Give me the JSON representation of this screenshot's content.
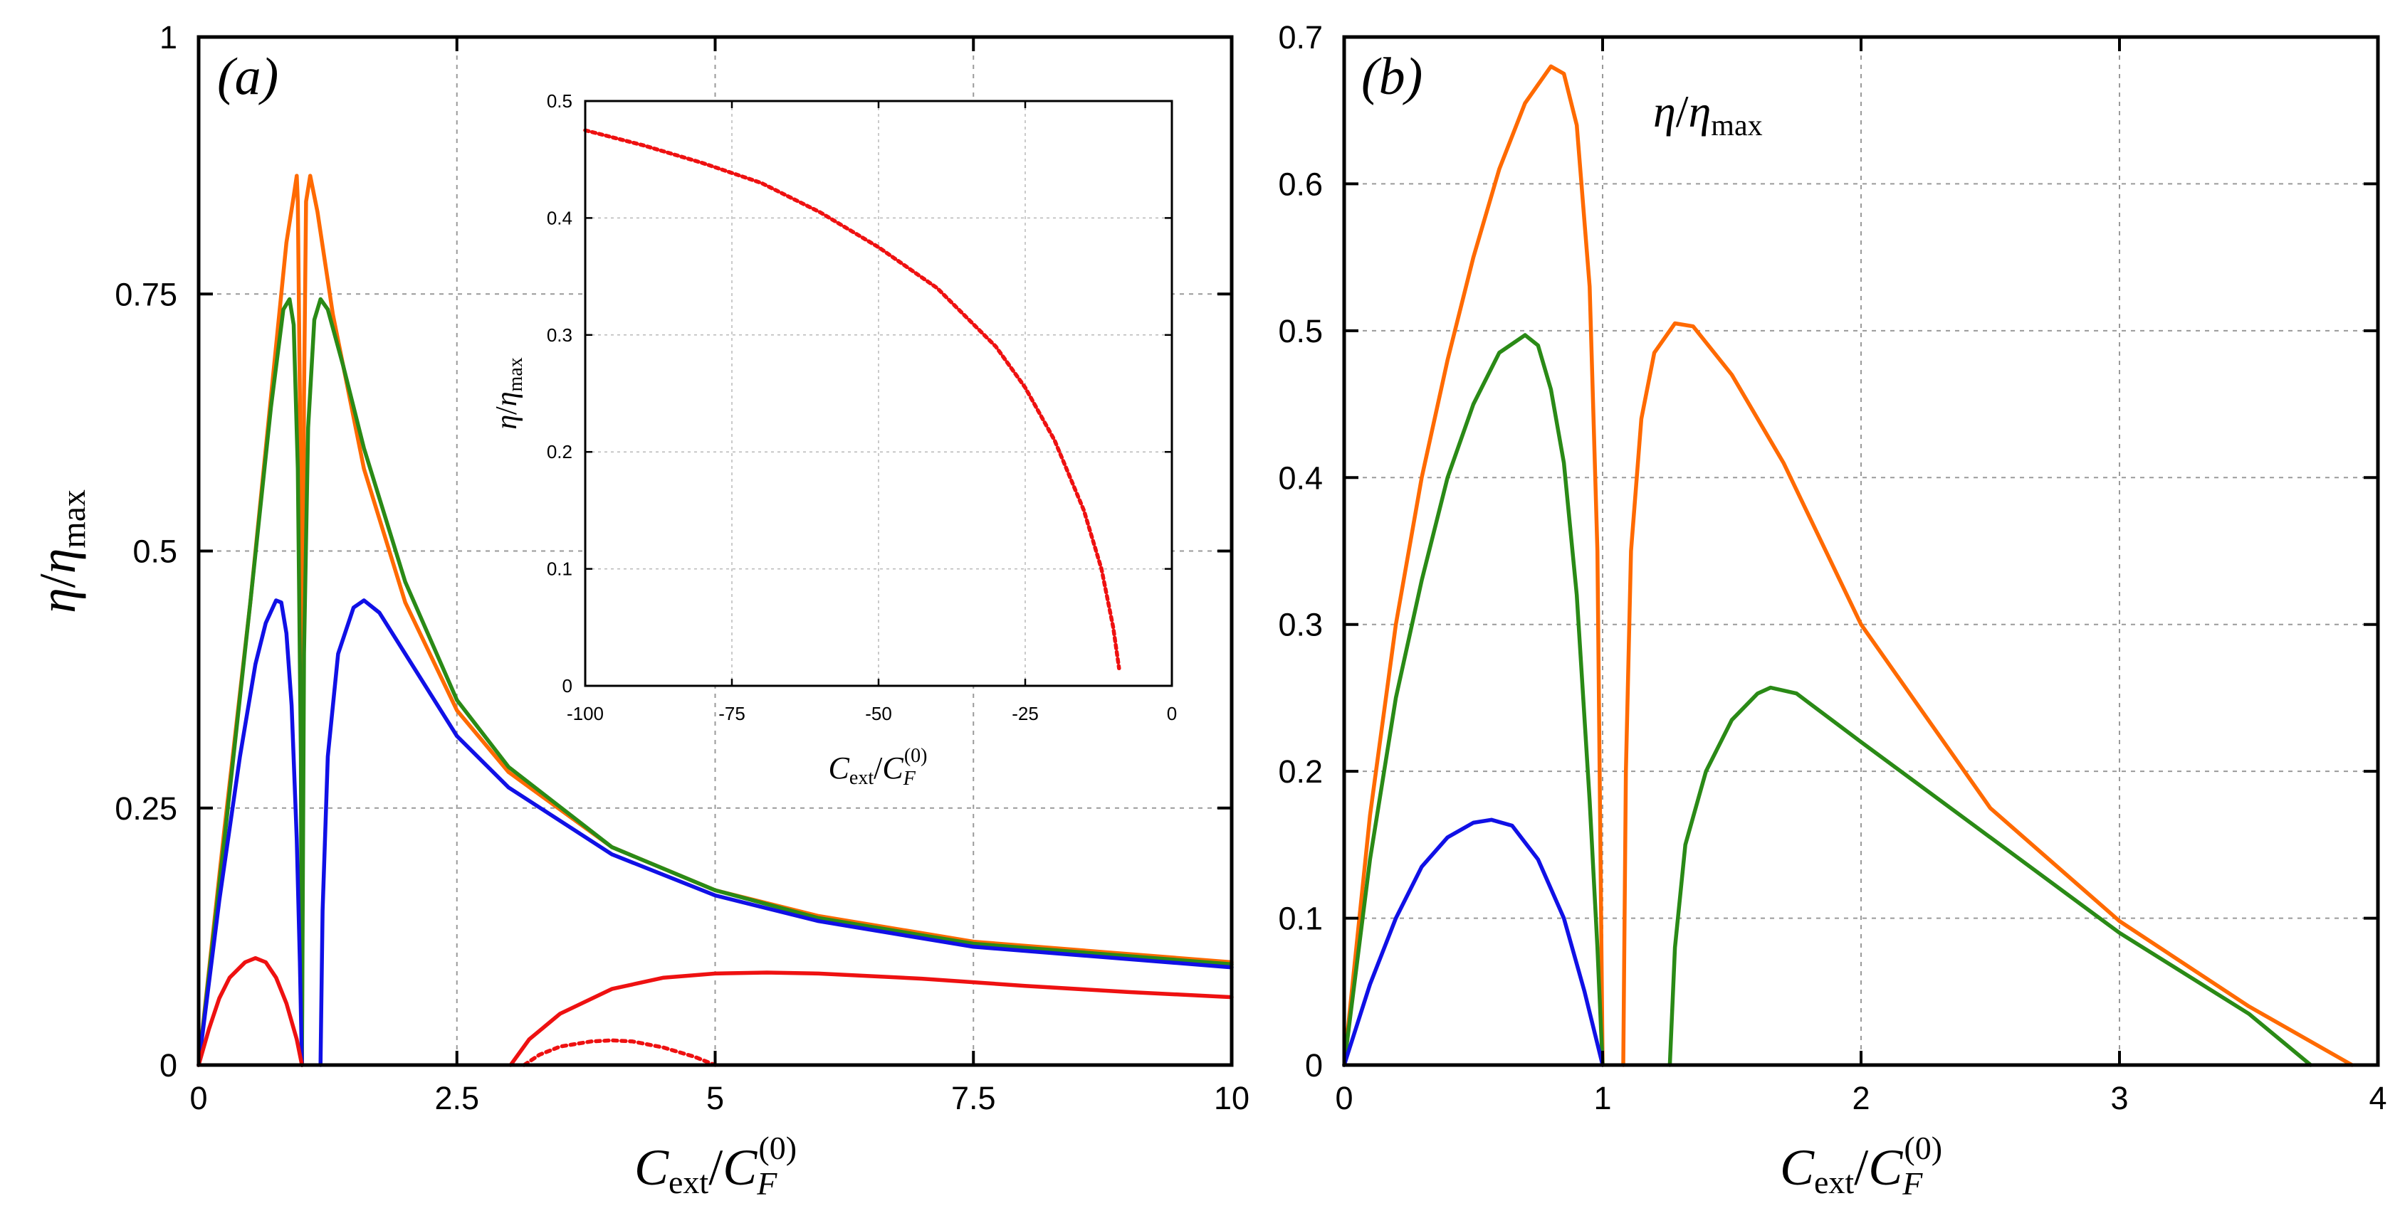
{
  "chart_data": [
    {
      "id": "a",
      "type": "line",
      "panel_label": "(a)",
      "xlabel": "C_ext/C_F^(0)",
      "ylabel": "η/η_max",
      "xlim": [
        0,
        10
      ],
      "ylim": [
        0,
        1
      ],
      "xticks": [
        0,
        2.5,
        5,
        7.5,
        10
      ],
      "xtick_labels": [
        "0",
        "2.5",
        "5",
        "7.5",
        "10"
      ],
      "yticks": [
        0,
        0.25,
        0.5,
        0.75,
        1
      ],
      "ytick_labels": [
        "0",
        "0.25",
        "0.5",
        "0.75",
        "1"
      ],
      "grid": true,
      "series": [
        {
          "name": "orange",
          "color": "#ff6a00",
          "style": "solid",
          "segments": [
            [
              [
                0,
                0
              ],
              [
                0.25,
                0.23
              ],
              [
                0.5,
                0.45
              ],
              [
                0.7,
                0.65
              ],
              [
                0.85,
                0.8
              ],
              [
                0.92,
                0.845
              ],
              [
                0.95,
                0.865
              ],
              [
                0.96,
                0.84
              ],
              [
                0.98,
                0.65
              ],
              [
                0.99,
                0.4
              ],
              [
                1.0,
                0
              ]
            ],
            [
              [
                1.0,
                0
              ],
              [
                1.01,
                0.4
              ],
              [
                1.02,
                0.65
              ],
              [
                1.04,
                0.84
              ],
              [
                1.08,
                0.865
              ],
              [
                1.15,
                0.83
              ],
              [
                1.3,
                0.73
              ],
              [
                1.6,
                0.58
              ],
              [
                2.0,
                0.45
              ],
              [
                2.5,
                0.345
              ],
              [
                3.0,
                0.285
              ],
              [
                4.0,
                0.212
              ],
              [
                5.0,
                0.17
              ],
              [
                6.0,
                0.145
              ],
              [
                7.5,
                0.12
              ],
              [
                10.0,
                0.1
              ]
            ]
          ]
        },
        {
          "name": "green",
          "color": "#2a8a16",
          "style": "solid",
          "segments": [
            [
              [
                0,
                0
              ],
              [
                0.25,
                0.22
              ],
              [
                0.5,
                0.45
              ],
              [
                0.7,
                0.64
              ],
              [
                0.82,
                0.735
              ],
              [
                0.88,
                0.745
              ],
              [
                0.92,
                0.72
              ],
              [
                0.96,
                0.58
              ],
              [
                0.99,
                0.3
              ],
              [
                1.0,
                0
              ]
            ],
            [
              [
                1.0,
                0
              ],
              [
                1.02,
                0.4
              ],
              [
                1.06,
                0.62
              ],
              [
                1.12,
                0.725
              ],
              [
                1.18,
                0.745
              ],
              [
                1.25,
                0.735
              ],
              [
                1.4,
                0.68
              ],
              [
                1.6,
                0.6
              ],
              [
                2.0,
                0.47
              ],
              [
                2.5,
                0.355
              ],
              [
                3.0,
                0.29
              ],
              [
                4.0,
                0.212
              ],
              [
                5.0,
                0.17
              ],
              [
                6.0,
                0.143
              ],
              [
                7.5,
                0.118
              ],
              [
                10.0,
                0.098
              ]
            ]
          ]
        },
        {
          "name": "blue",
          "color": "#1010e6",
          "style": "solid",
          "segments": [
            [
              [
                0,
                0
              ],
              [
                0.2,
                0.16
              ],
              [
                0.4,
                0.3
              ],
              [
                0.55,
                0.39
              ],
              [
                0.65,
                0.43
              ],
              [
                0.75,
                0.452
              ],
              [
                0.8,
                0.45
              ],
              [
                0.85,
                0.42
              ],
              [
                0.9,
                0.35
              ],
              [
                0.95,
                0.22
              ],
              [
                0.98,
                0.1
              ],
              [
                1.0,
                0
              ]
            ],
            [
              [
                1.18,
                0
              ],
              [
                1.2,
                0.15
              ],
              [
                1.25,
                0.3
              ],
              [
                1.35,
                0.4
              ],
              [
                1.5,
                0.445
              ],
              [
                1.6,
                0.452
              ],
              [
                1.75,
                0.44
              ],
              [
                2.0,
                0.4
              ],
              [
                2.5,
                0.32
              ],
              [
                3.0,
                0.27
              ],
              [
                4.0,
                0.205
              ],
              [
                5.0,
                0.165
              ],
              [
                6.0,
                0.14
              ],
              [
                7.5,
                0.115
              ],
              [
                10.0,
                0.095
              ]
            ]
          ]
        },
        {
          "name": "red",
          "color": "#ee1111",
          "style": "solid",
          "segments": [
            [
              [
                0,
                0
              ],
              [
                0.1,
                0.035
              ],
              [
                0.2,
                0.065
              ],
              [
                0.3,
                0.085
              ],
              [
                0.45,
                0.1
              ],
              [
                0.55,
                0.104
              ],
              [
                0.65,
                0.1
              ],
              [
                0.75,
                0.085
              ],
              [
                0.85,
                0.06
              ],
              [
                0.95,
                0.025
              ],
              [
                1.0,
                0
              ]
            ],
            [
              [
                3.02,
                0
              ],
              [
                3.2,
                0.025
              ],
              [
                3.5,
                0.05
              ],
              [
                4.0,
                0.074
              ],
              [
                4.5,
                0.085
              ],
              [
                5.0,
                0.089
              ],
              [
                5.5,
                0.09
              ],
              [
                6.0,
                0.089
              ],
              [
                7.0,
                0.084
              ],
              [
                8.0,
                0.077
              ],
              [
                9.0,
                0.071
              ],
              [
                10.0,
                0.066
              ]
            ]
          ]
        },
        {
          "name": "red-dotted",
          "color": "#ee1111",
          "style": "dotted",
          "segments": [
            [
              [
                3.15,
                0
              ],
              [
                3.3,
                0.01
              ],
              [
                3.5,
                0.018
              ],
              [
                3.8,
                0.023
              ],
              [
                4.0,
                0.024
              ],
              [
                4.2,
                0.023
              ],
              [
                4.5,
                0.017
              ],
              [
                4.8,
                0.008
              ],
              [
                5.0,
                0
              ]
            ]
          ]
        }
      ],
      "inset": {
        "type": "line",
        "xlabel": "C_ext/C_F^(0)",
        "ylabel": "η/η_max",
        "xlim": [
          -100,
          0
        ],
        "ylim": [
          0,
          0.5
        ],
        "xticks": [
          -100,
          -75,
          -50,
          -25,
          0
        ],
        "xtick_labels": [
          "-100",
          "-75",
          "-50",
          "-25",
          "0"
        ],
        "yticks": [
          0,
          0.1,
          0.2,
          0.3,
          0.4,
          0.5
        ],
        "ytick_labels": [
          "0",
          "0.1",
          "0.2",
          "0.3",
          "0.4",
          "0.5"
        ],
        "grid": true,
        "series": [
          {
            "name": "red-dotted",
            "color": "#ee1111",
            "style": "dotted",
            "segments": [
              [
                [
                  -100,
                  0.475
                ],
                [
                  -90,
                  0.462
                ],
                [
                  -80,
                  0.447
                ],
                [
                  -70,
                  0.43
                ],
                [
                  -60,
                  0.405
                ],
                [
                  -50,
                  0.375
                ],
                [
                  -40,
                  0.34
                ],
                [
                  -30,
                  0.29
                ],
                [
                  -25,
                  0.255
                ],
                [
                  -20,
                  0.21
                ],
                [
                  -15,
                  0.15
                ],
                [
                  -12,
                  0.1
                ],
                [
                  -10,
                  0.05
                ],
                [
                  -9,
                  0.015
                ]
              ]
            ]
          }
        ]
      }
    },
    {
      "id": "b",
      "type": "line",
      "panel_label": "(b)",
      "xlabel": "C_ext/C_F^(0)",
      "ylabel": "η/η_max",
      "annotation": "η/η_max",
      "xlim": [
        0,
        4
      ],
      "ylim": [
        0,
        0.7
      ],
      "xticks": [
        0,
        1,
        2,
        3,
        4
      ],
      "xtick_labels": [
        "0",
        "1",
        "2",
        "3",
        "4"
      ],
      "yticks": [
        0,
        0.1,
        0.2,
        0.3,
        0.4,
        0.5,
        0.6,
        0.7
      ],
      "ytick_labels": [
        "0",
        "0.1",
        "0.2",
        "0.3",
        "0.4",
        "0.5",
        "0.6",
        "0.7"
      ],
      "grid": true,
      "series": [
        {
          "name": "orange",
          "color": "#ff6a00",
          "style": "solid",
          "segments": [
            [
              [
                0,
                0
              ],
              [
                0.1,
                0.17
              ],
              [
                0.2,
                0.3
              ],
              [
                0.3,
                0.4
              ],
              [
                0.4,
                0.48
              ],
              [
                0.5,
                0.55
              ],
              [
                0.6,
                0.61
              ],
              [
                0.7,
                0.655
              ],
              [
                0.8,
                0.68
              ],
              [
                0.85,
                0.675
              ],
              [
                0.9,
                0.64
              ],
              [
                0.95,
                0.53
              ],
              [
                0.98,
                0.35
              ],
              [
                1.0,
                0
              ]
            ],
            [
              [
                1.08,
                0
              ],
              [
                1.09,
                0.2
              ],
              [
                1.11,
                0.35
              ],
              [
                1.15,
                0.44
              ],
              [
                1.2,
                0.485
              ],
              [
                1.28,
                0.505
              ],
              [
                1.35,
                0.503
              ],
              [
                1.5,
                0.47
              ],
              [
                1.7,
                0.41
              ],
              [
                2.0,
                0.3
              ],
              [
                2.5,
                0.175
              ],
              [
                3.0,
                0.098
              ],
              [
                3.5,
                0.04
              ],
              [
                3.9,
                0
              ]
            ]
          ]
        },
        {
          "name": "green",
          "color": "#2a8a16",
          "style": "solid",
          "segments": [
            [
              [
                0,
                0
              ],
              [
                0.1,
                0.14
              ],
              [
                0.2,
                0.25
              ],
              [
                0.3,
                0.33
              ],
              [
                0.4,
                0.4
              ],
              [
                0.5,
                0.45
              ],
              [
                0.6,
                0.485
              ],
              [
                0.7,
                0.497
              ],
              [
                0.75,
                0.49
              ],
              [
                0.8,
                0.46
              ],
              [
                0.85,
                0.41
              ],
              [
                0.9,
                0.32
              ],
              [
                0.95,
                0.18
              ],
              [
                0.98,
                0.08
              ],
              [
                1.0,
                0
              ]
            ],
            [
              [
                1.26,
                0
              ],
              [
                1.28,
                0.08
              ],
              [
                1.32,
                0.15
              ],
              [
                1.4,
                0.2
              ],
              [
                1.5,
                0.235
              ],
              [
                1.6,
                0.253
              ],
              [
                1.65,
                0.257
              ],
              [
                1.75,
                0.253
              ],
              [
                2.0,
                0.22
              ],
              [
                2.5,
                0.155
              ],
              [
                3.0,
                0.09
              ],
              [
                3.5,
                0.035
              ],
              [
                3.74,
                0
              ]
            ]
          ]
        },
        {
          "name": "blue",
          "color": "#1010e6",
          "style": "solid",
          "segments": [
            [
              [
                0,
                0
              ],
              [
                0.1,
                0.055
              ],
              [
                0.2,
                0.1
              ],
              [
                0.3,
                0.135
              ],
              [
                0.4,
                0.155
              ],
              [
                0.5,
                0.165
              ],
              [
                0.57,
                0.167
              ],
              [
                0.65,
                0.163
              ],
              [
                0.75,
                0.14
              ],
              [
                0.85,
                0.1
              ],
              [
                0.93,
                0.05
              ],
              [
                1.0,
                0
              ]
            ]
          ]
        }
      ]
    }
  ]
}
